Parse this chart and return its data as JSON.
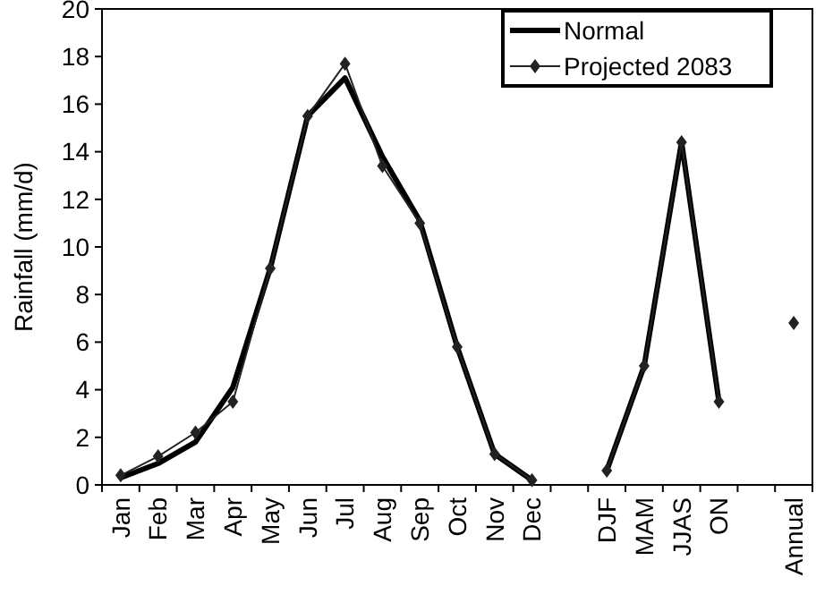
{
  "chart_data": {
    "type": "line",
    "ylabel": "Rainfall (mm/d)",
    "categories": [
      "Jan",
      "Feb",
      "Mar",
      "Apr",
      "May",
      "Jun",
      "Jul",
      "Aug",
      "Sep",
      "Oct",
      "Nov",
      "Dec",
      null,
      "DJF",
      "MAM",
      "JJAS",
      "ON",
      null,
      "Annual"
    ],
    "series": [
      {
        "name": "Normal",
        "color": "#000000",
        "marker": "none",
        "values": [
          0.3,
          0.9,
          1.8,
          4.1,
          9.1,
          15.5,
          17.1,
          13.8,
          11.1,
          5.8,
          1.3,
          0.2,
          null,
          0.6,
          5.0,
          14.4,
          3.5,
          null,
          null
        ]
      },
      {
        "name": "Projected 2083",
        "color": "#222222",
        "marker": "diamond",
        "values": [
          0.4,
          1.2,
          2.2,
          3.5,
          9.1,
          15.5,
          17.7,
          13.4,
          11.0,
          5.8,
          1.3,
          0.2,
          null,
          0.6,
          5.0,
          14.4,
          3.5,
          null,
          6.8
        ]
      }
    ],
    "ylim": [
      0,
      20
    ],
    "yticks": [
      0,
      2,
      4,
      6,
      8,
      10,
      12,
      14,
      16,
      18,
      20
    ],
    "grid": false,
    "legend": "top right"
  }
}
